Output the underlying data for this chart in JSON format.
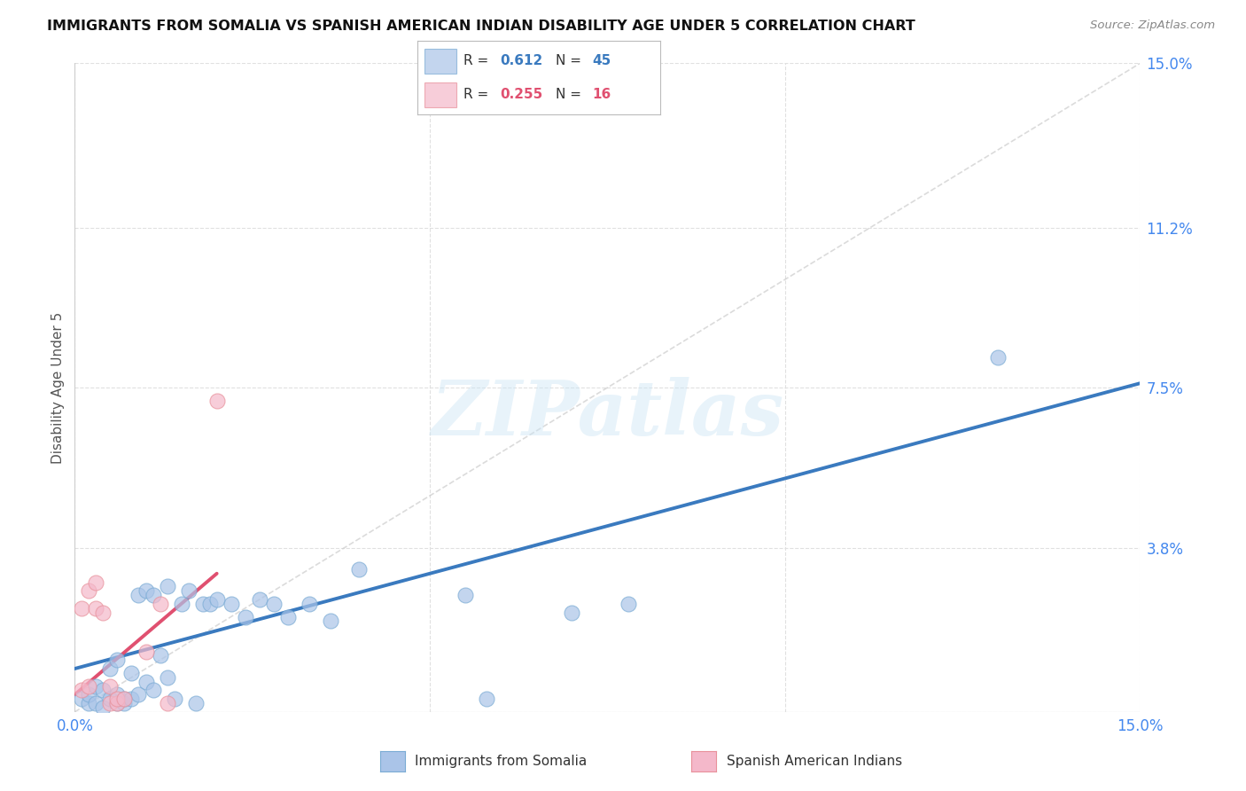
{
  "title": "IMMIGRANTS FROM SOMALIA VS SPANISH AMERICAN INDIAN DISABILITY AGE UNDER 5 CORRELATION CHART",
  "source": "Source: ZipAtlas.com",
  "ylabel": "Disability Age Under 5",
  "xmin": 0.0,
  "xmax": 0.15,
  "ymin": 0.0,
  "ymax": 0.15,
  "blue_color": "#aac4e8",
  "pink_color": "#f4b8ca",
  "blue_edge_color": "#7aabd4",
  "pink_edge_color": "#e8909a",
  "trend_blue_color": "#3a7abf",
  "trend_pink_color": "#e05070",
  "diag_color": "#cccccc",
  "r_blue": "0.612",
  "n_blue": "45",
  "r_pink": "0.255",
  "n_pink": "16",
  "label_blue": "Immigrants from Somalia",
  "label_pink": "Spanish American Indians",
  "watermark": "ZIPatlas",
  "tick_color": "#4488ee",
  "grid_color": "#e0e0e0",
  "blue_x": [
    0.001,
    0.002,
    0.002,
    0.003,
    0.003,
    0.004,
    0.004,
    0.005,
    0.005,
    0.006,
    0.006,
    0.006,
    0.007,
    0.007,
    0.008,
    0.008,
    0.009,
    0.009,
    0.01,
    0.01,
    0.011,
    0.011,
    0.012,
    0.013,
    0.013,
    0.014,
    0.015,
    0.016,
    0.017,
    0.018,
    0.019,
    0.02,
    0.022,
    0.024,
    0.026,
    0.028,
    0.03,
    0.033,
    0.036,
    0.04,
    0.055,
    0.058,
    0.07,
    0.078,
    0.13
  ],
  "blue_y": [
    0.003,
    0.002,
    0.004,
    0.002,
    0.006,
    0.001,
    0.005,
    0.003,
    0.01,
    0.002,
    0.004,
    0.012,
    0.002,
    0.003,
    0.003,
    0.009,
    0.004,
    0.027,
    0.007,
    0.028,
    0.005,
    0.027,
    0.013,
    0.008,
    0.029,
    0.003,
    0.025,
    0.028,
    0.002,
    0.025,
    0.025,
    0.026,
    0.025,
    0.022,
    0.026,
    0.025,
    0.022,
    0.025,
    0.021,
    0.033,
    0.027,
    0.003,
    0.023,
    0.025,
    0.082
  ],
  "pink_x": [
    0.001,
    0.001,
    0.002,
    0.002,
    0.003,
    0.003,
    0.004,
    0.005,
    0.005,
    0.006,
    0.006,
    0.007,
    0.01,
    0.012,
    0.013,
    0.02
  ],
  "pink_y": [
    0.005,
    0.024,
    0.006,
    0.028,
    0.024,
    0.03,
    0.023,
    0.002,
    0.006,
    0.002,
    0.003,
    0.003,
    0.014,
    0.025,
    0.002,
    0.072
  ],
  "blue_trend_x0": 0.0,
  "blue_trend_x1": 0.15,
  "blue_trend_y0": 0.01,
  "blue_trend_y1": 0.076,
  "pink_trend_x0": 0.0,
  "pink_trend_x1": 0.02,
  "pink_trend_y0": 0.004,
  "pink_trend_y1": 0.032,
  "ytick_vals": [
    0.0,
    0.038,
    0.075,
    0.112,
    0.15
  ],
  "ytick_labels": [
    "",
    "3.8%",
    "7.5%",
    "11.2%",
    "15.0%"
  ],
  "xtick_vals": [
    0.0,
    0.05,
    0.1,
    0.15
  ],
  "xtick_labels": [
    "0.0%",
    "",
    "",
    "15.0%"
  ]
}
